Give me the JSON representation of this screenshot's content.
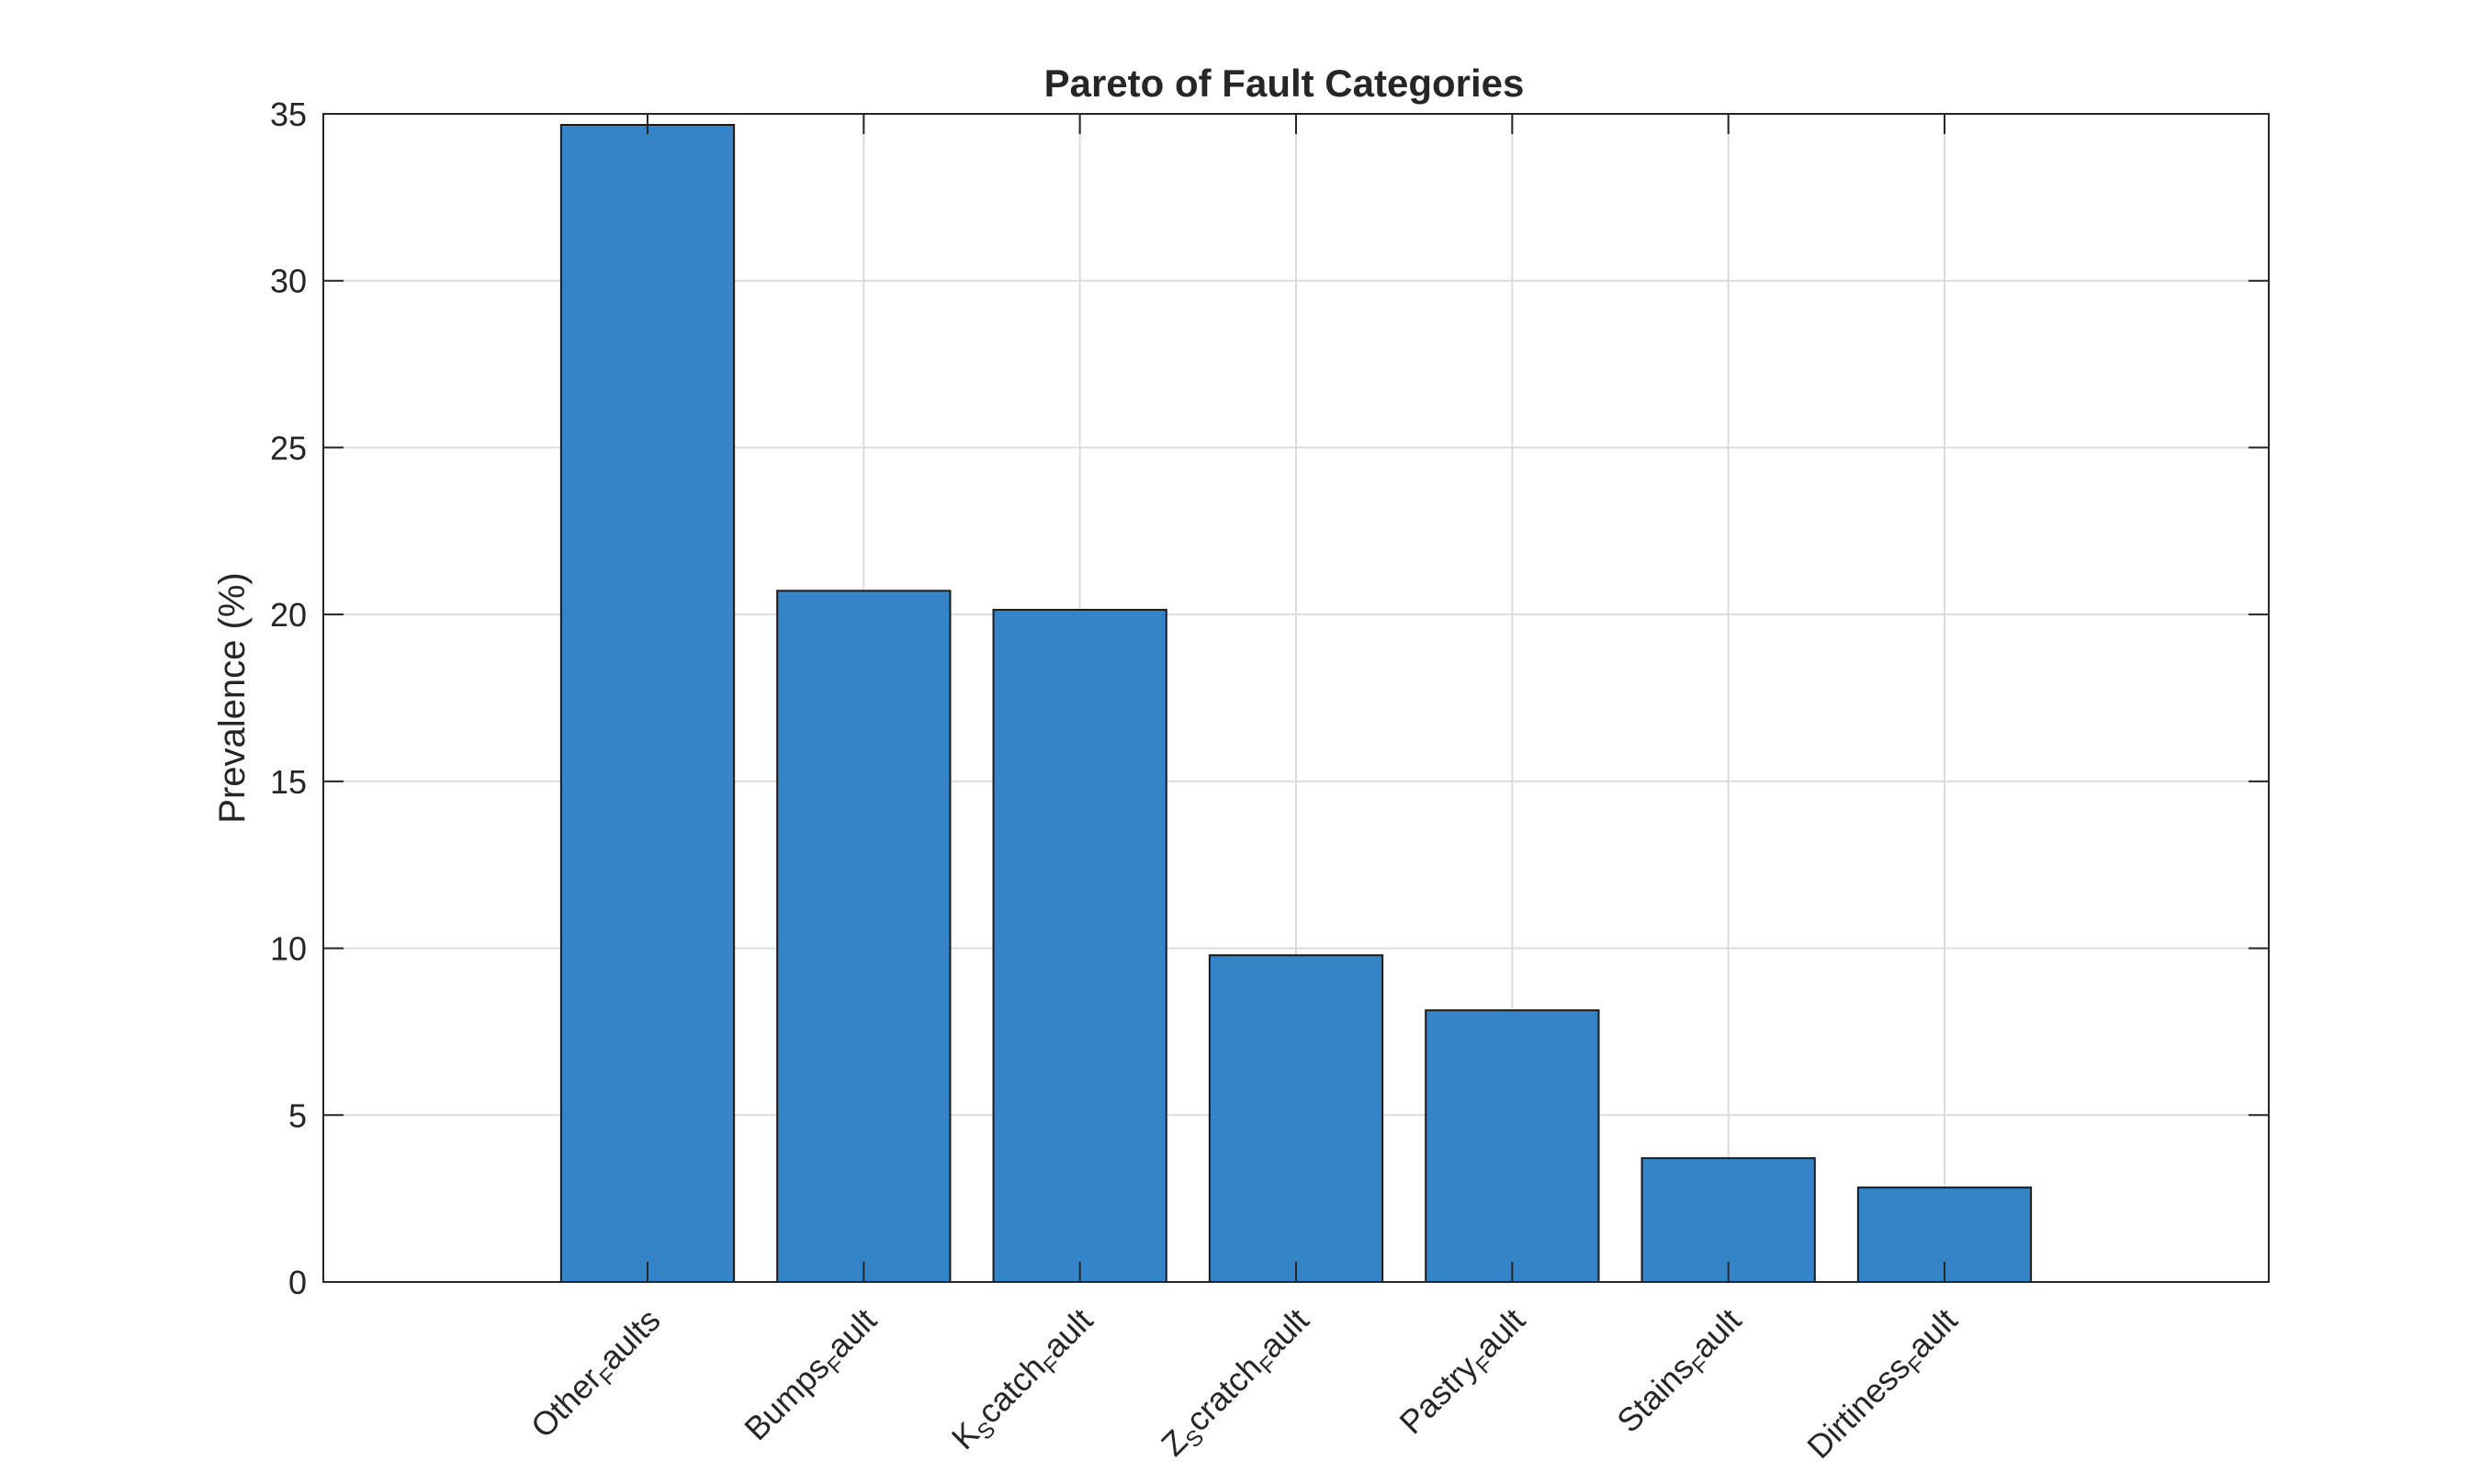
{
  "chart_data": {
    "type": "bar",
    "title": "Pareto of Fault Categories",
    "xlabel": "",
    "ylabel": "Prevalence (%)",
    "ylim": [
      0,
      35
    ],
    "yticks": [
      0,
      5,
      10,
      15,
      20,
      25,
      30,
      35
    ],
    "grid": true,
    "categories": [
      "Other_Faults",
      "Bumps_Fault",
      "K_Scatch_Fault",
      "Z_Scratch_Fault",
      "Pastry_Fault",
      "Stains_Fault",
      "Dirtiness_Fault"
    ],
    "category_labels": [
      [
        {
          "t": "Other"
        },
        {
          "t": "F",
          "sub": true
        },
        {
          "t": "aults"
        }
      ],
      [
        {
          "t": "Bumps"
        },
        {
          "t": "F",
          "sub": true
        },
        {
          "t": "ault"
        }
      ],
      [
        {
          "t": "K"
        },
        {
          "t": "S",
          "sub": true
        },
        {
          "t": "catch"
        },
        {
          "t": "F",
          "sub": true
        },
        {
          "t": "ault"
        }
      ],
      [
        {
          "t": "Z"
        },
        {
          "t": "S",
          "sub": true
        },
        {
          "t": "cratch"
        },
        {
          "t": "F",
          "sub": true
        },
        {
          "t": "ault"
        }
      ],
      [
        {
          "t": "Pastry"
        },
        {
          "t": "F",
          "sub": true
        },
        {
          "t": "ault"
        }
      ],
      [
        {
          "t": "Stains"
        },
        {
          "t": "F",
          "sub": true
        },
        {
          "t": "ault"
        }
      ],
      [
        {
          "t": "Dirtiness"
        },
        {
          "t": "F",
          "sub": true
        },
        {
          "t": "ault"
        }
      ]
    ],
    "values": [
      34.67,
      20.71,
      20.14,
      9.79,
      8.14,
      3.71,
      2.83
    ],
    "colors": {
      "bar_fill": "#3584c8",
      "bar_edge": "#1a1a1a",
      "axis": "#262626",
      "grid": "#dcdcdc"
    }
  }
}
